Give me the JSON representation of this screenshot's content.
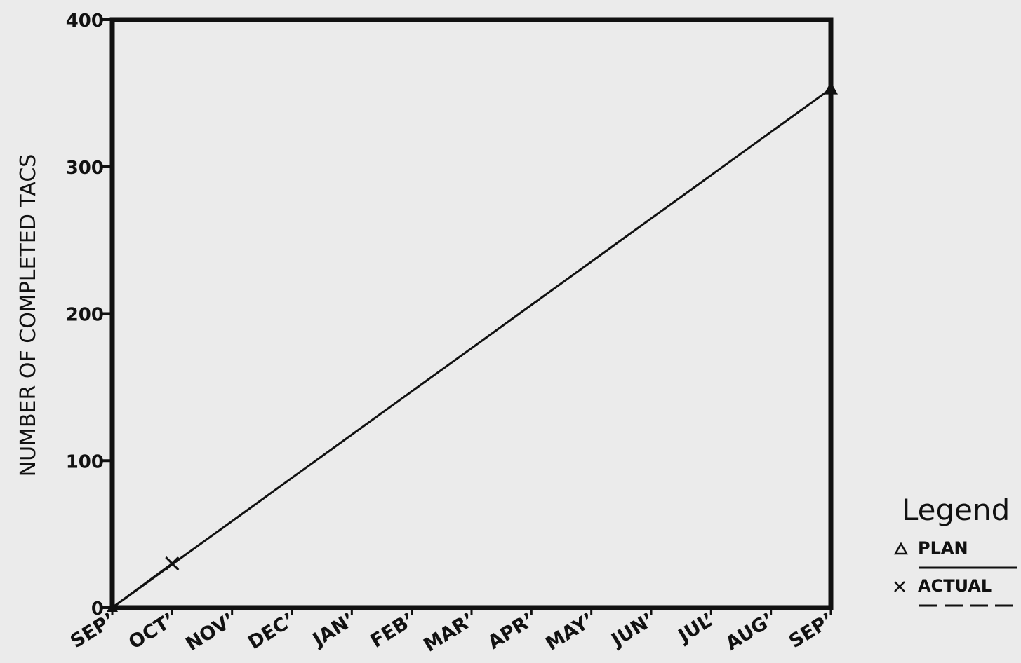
{
  "chart_data": {
    "type": "line",
    "title": "",
    "xlabel": "",
    "ylabel": "NUMBER OF COMPLETED TACS",
    "categories": [
      "SEP",
      "OCT",
      "NOV",
      "DEC",
      "JAN",
      "FEB",
      "MAR",
      "APR",
      "MAY",
      "JUN",
      "JUL",
      "AUG",
      "SEP"
    ],
    "yticks": [
      0,
      100,
      200,
      300,
      400
    ],
    "ylim": [
      0,
      400
    ],
    "grid": false,
    "legend_position": "right",
    "legend_title": "Legend",
    "series": [
      {
        "name": "PLAN",
        "marker": "triangle",
        "line_style": "solid",
        "points": [
          {
            "x": "SEP",
            "y": 0
          },
          {
            "x": "SEP",
            "y": 353
          }
        ]
      },
      {
        "name": "ACTUAL",
        "marker": "x",
        "line_style": "dashed",
        "points": [
          {
            "x": "SEP",
            "y": 0
          },
          {
            "x": "OCT",
            "y": 30
          }
        ]
      }
    ],
    "colors": {
      "background": "#ebebeb",
      "ink": "#111111"
    }
  }
}
